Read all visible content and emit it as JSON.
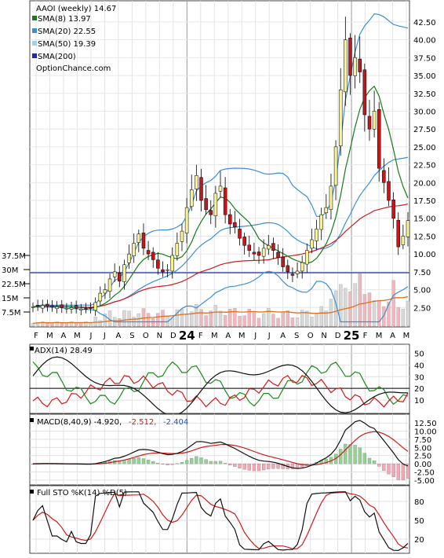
{
  "legend": [
    {
      "label": "AAOI (weekly) 14.67",
      "color": ""
    },
    {
      "label": "SMA(8) 13.97",
      "color": "#1a7a1a"
    },
    {
      "label": "SMA(20) 22.55",
      "color": "#3b8fd6"
    },
    {
      "label": "SMA(50) 19.39",
      "color": "#9fd0f0"
    },
    {
      "label": "SMA(200)",
      "color": "#1f2ea8"
    }
  ],
  "watermark": "OptionChance.com",
  "x_labels": [
    "F",
    "M",
    "A",
    "M",
    "J",
    "J",
    "A",
    "S",
    "O",
    "N",
    "D",
    "24",
    "F",
    "M",
    "A",
    "M",
    "J",
    "J",
    "A",
    "S",
    "O",
    "N",
    "D",
    "25",
    "F",
    "M",
    "A",
    "M"
  ],
  "colors": {
    "up": "#f5f29a",
    "down": "#c4161c",
    "sma8": "#1a7a1a",
    "sma20": "#3b8fd6",
    "sma50": "#d11a1a",
    "sma200": "#1f2ea8",
    "vol_ma": "#e0701a",
    "adx": "#111111",
    "pdi": "#1a8a1a",
    "mdi": "#d11a1a",
    "macd": "#111111",
    "signal": "#d11a1a",
    "stoK": "#111111",
    "stoD": "#d11a1a"
  },
  "chart_data": [
    {
      "type": "candlestick",
      "title": "AAOI (weekly) 14.67",
      "yticks": [
        "42.50",
        "40.00",
        "37.50",
        "35.00",
        "32.50",
        "30.00",
        "27.50",
        "25.00",
        "22.50",
        "20.00",
        "17.50",
        "15.00",
        "12.50",
        "10.00",
        "7.50",
        "5.00",
        "2.50"
      ],
      "ylim": [
        0,
        45
      ],
      "close": [
        2.6,
        2.7,
        2.8,
        2.7,
        2.6,
        2.6,
        2.5,
        2.4,
        2.5,
        2.4,
        2.3,
        2.3,
        2.4,
        3.2,
        4.5,
        5.0,
        6.5,
        7.5,
        6.2,
        8.5,
        10.0,
        11.5,
        12.8,
        10.8,
        10.0,
        9.2,
        8.0,
        7.5,
        7.8,
        9.8,
        11.5,
        13.2,
        16.5,
        19.0,
        21.0,
        17.5,
        16.2,
        15.5,
        18.5,
        19.5,
        15.5,
        14.2,
        13.8,
        12.2,
        11.2,
        10.5,
        10.0,
        9.8,
        10.8,
        11.2,
        10.5,
        9.5,
        8.2,
        7.5,
        7.0,
        7.6,
        8.8,
        10.5,
        12.0,
        13.5,
        15.5,
        16.5,
        19.5,
        25.0,
        33.0,
        40.0,
        35.0,
        37.5,
        35.5,
        29.5,
        27.5,
        30.0,
        22.0,
        20.0,
        17.5,
        15.0,
        11.0,
        12.5,
        14.67
      ],
      "volume_ylim_million": [
        0,
        37.5
      ],
      "volume_ticks": [
        "37.5M",
        "30M",
        "22.5M",
        "15M",
        "7.5M"
      ]
    },
    {
      "type": "line",
      "title": "ADX(14) 28.49",
      "series": [
        {
          "name": "ADX(14)"
        }
      ],
      "ticks": [
        "50",
        "40",
        "30",
        "20",
        "10"
      ],
      "ylim": [
        0,
        55
      ]
    },
    {
      "type": "line",
      "title": "MACD(8,40,9) -4.920,",
      "values_text": [
        "-2.512,",
        "-2.404"
      ],
      "ticks": [
        "12.50",
        "10.00",
        "7.50",
        "5.00",
        "2.50",
        "0.00",
        "-2.50",
        "-5.00"
      ],
      "ylim": [
        -6,
        14
      ]
    },
    {
      "type": "line",
      "title": "Full STO %K(14) %D(5)",
      "ticks": [
        "80",
        "50",
        "20"
      ],
      "ylim": [
        0,
        100
      ]
    }
  ]
}
